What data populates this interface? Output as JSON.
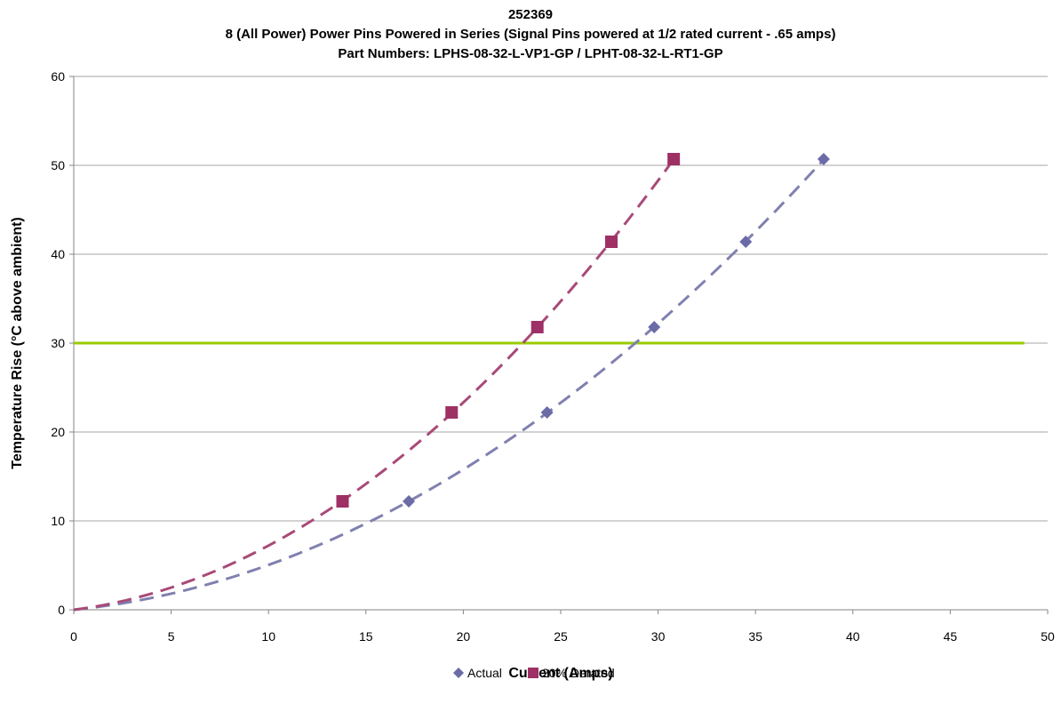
{
  "chart_data": {
    "type": "scatter",
    "title_lines": [
      "252369",
      "8 (All Power) Power Pins Powered in Series (Signal Pins powered at 1/2 rated current - .65 amps)",
      "Part Numbers: LPHS-08-32-L-VP1-GP / LPHT-08-32-L-RT1-GP"
    ],
    "xlabel": "Current (Amps)",
    "ylabel": "Temperature Rise (°C above ambient)",
    "xlim": [
      0,
      50
    ],
    "ylim": [
      0,
      60
    ],
    "xticks": [
      "0",
      "5",
      "10",
      "15",
      "20",
      "25",
      "30",
      "35",
      "40",
      "45",
      "50"
    ],
    "yticks": [
      "0",
      "10",
      "20",
      "30",
      "40",
      "50",
      "60"
    ],
    "grid": "horizontal",
    "legend_position": "bottom",
    "threshold_line": {
      "y": 30,
      "x_end": 48.8,
      "color": "#99cc00"
    },
    "series": [
      {
        "name": "Actual",
        "marker": "diamond",
        "color": "#6b6ba8",
        "trend_color": "#8080b0",
        "points": [
          [
            0,
            0
          ],
          [
            17.2,
            12.2
          ],
          [
            24.3,
            22.2
          ],
          [
            29.8,
            31.8
          ],
          [
            34.5,
            41.4
          ],
          [
            38.5,
            50.7
          ]
        ]
      },
      {
        "name": "20% Derated",
        "marker": "square",
        "color": "#9e3065",
        "trend_color": "#a84a78",
        "points": [
          [
            0,
            0
          ],
          [
            13.8,
            12.2
          ],
          [
            19.4,
            22.2
          ],
          [
            23.8,
            31.8
          ],
          [
            27.6,
            41.4
          ],
          [
            30.8,
            50.7
          ]
        ]
      }
    ]
  }
}
